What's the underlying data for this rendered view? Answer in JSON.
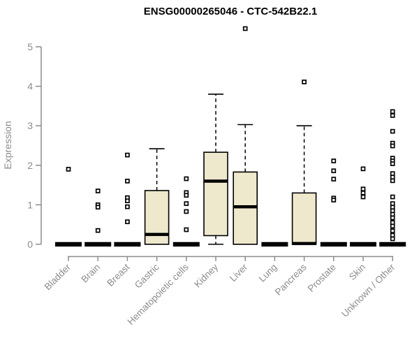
{
  "chart_data": {
    "type": "boxplot",
    "title": "ENSG00000265046 - CTC-542B22.1",
    "xlabel": "",
    "ylabel": "Expression",
    "ylim": [
      0,
      5
    ],
    "yticks": [
      0,
      1,
      2,
      3,
      4,
      5
    ],
    "grid": false,
    "legend": "none",
    "categories": [
      "Bladder",
      "Brain",
      "Breast",
      "Gastric",
      "Hematopoietic cells",
      "Kidney",
      "Liver",
      "Lung",
      "Pancreas",
      "Prostate",
      "Skin",
      "Unknown / Other"
    ],
    "boxes": [
      {
        "category": "Bladder",
        "q1": 0,
        "median": 0,
        "q3": 0,
        "whisker_low": 0,
        "whisker_high": 0,
        "outliers": [
          1.9
        ]
      },
      {
        "category": "Brain",
        "q1": 0,
        "median": 0,
        "q3": 0,
        "whisker_low": 0,
        "whisker_high": 0,
        "outliers": [
          1.35,
          1.0,
          0.94,
          0.35
        ]
      },
      {
        "category": "Breast",
        "q1": 0,
        "median": 0,
        "q3": 0,
        "whisker_low": 0,
        "whisker_high": 0,
        "outliers": [
          2.26,
          1.6,
          1.18,
          1.1,
          0.95,
          0.57
        ]
      },
      {
        "category": "Gastric",
        "q1": 0,
        "median": 0.25,
        "q3": 1.36,
        "whisker_low": 0,
        "whisker_high": 2.42,
        "outliers": []
      },
      {
        "category": "Hematopoietic cells",
        "q1": 0,
        "median": 0,
        "q3": 0,
        "whisker_low": 0,
        "whisker_high": 0,
        "outliers": [
          1.66,
          1.31,
          1.24,
          1.03,
          0.83,
          0.37
        ]
      },
      {
        "category": "Kidney",
        "q1": 0.22,
        "median": 1.6,
        "q3": 2.33,
        "whisker_low": 0,
        "whisker_high": 3.8,
        "outliers": []
      },
      {
        "category": "Liver",
        "q1": 0,
        "median": 0.95,
        "q3": 1.83,
        "whisker_low": 0,
        "whisker_high": 3.03,
        "outliers": [
          5.46
        ]
      },
      {
        "category": "Lung",
        "q1": 0,
        "median": 0,
        "q3": 0,
        "whisker_low": 0,
        "whisker_high": 0,
        "outliers": []
      },
      {
        "category": "Pancreas",
        "q1": 0,
        "median": 0.02,
        "q3": 1.3,
        "whisker_low": 0,
        "whisker_high": 3.0,
        "outliers": [
          4.11
        ]
      },
      {
        "category": "Prostate",
        "q1": 0,
        "median": 0,
        "q3": 0,
        "whisker_low": 0,
        "whisker_high": 0,
        "outliers": [
          2.11,
          1.86,
          1.65,
          1.17,
          1.12
        ]
      },
      {
        "category": "Skin",
        "q1": 0,
        "median": 0,
        "q3": 0,
        "whisker_low": 0,
        "whisker_high": 0,
        "outliers": [
          1.91,
          1.4,
          1.3,
          1.2
        ]
      },
      {
        "category": "Unknown / Other",
        "q1": 0,
        "median": 0,
        "q3": 0,
        "whisker_low": 0,
        "whisker_high": 0,
        "outliers": [
          3.36,
          3.26,
          2.86,
          2.56,
          2.49,
          2.18,
          2.11,
          2.04,
          1.79,
          1.7,
          1.61,
          1.2,
          1.03,
          0.94,
          0.85,
          0.76,
          0.67,
          0.55,
          0.46,
          0.34,
          0.23,
          0.14
        ]
      }
    ],
    "colors": {
      "box_fill": "#EEE8CD",
      "box_stroke": "#000000",
      "median": "#000000",
      "whisker": "#000000",
      "outlier_stroke": "#000000",
      "outlier_fill": "#FFFFFF",
      "axis": "#8C8C8C",
      "tick_label": "#8C8C8C",
      "title": "#000000",
      "background": "#FFFFFF"
    }
  }
}
